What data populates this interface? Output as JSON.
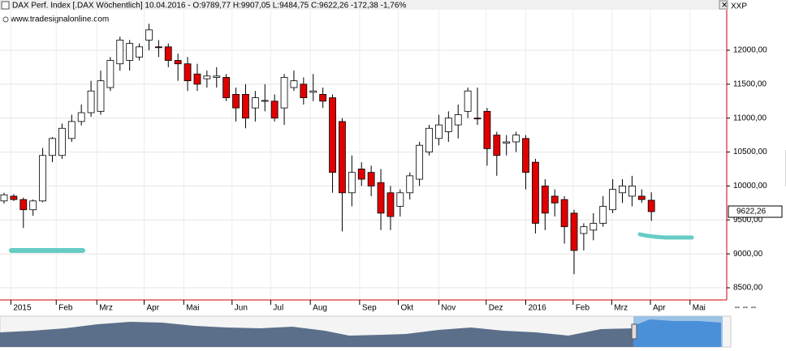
{
  "chart_data": {
    "type": "candlestick",
    "title": "DAX Perf. Index [.DAX  Wöchentlich] 10.04.2016 - O:9789,77 H:9907,05 L:9484,75 C:9622,26 -172,38 -1,76%",
    "watermark": "www.tradesignalonline.com",
    "axis_name": "XXP",
    "last_price_label": "9622,26",
    "x": [
      0,
      1,
      2,
      3,
      4,
      5,
      6,
      7,
      8,
      9,
      10,
      11,
      12,
      13,
      14,
      15,
      16,
      17,
      18,
      19,
      20,
      21,
      22,
      23,
      24,
      25,
      26,
      27,
      28,
      29,
      30,
      31,
      32,
      33,
      34,
      35,
      36,
      37,
      38,
      39,
      40,
      41,
      42,
      43,
      44,
      45,
      46,
      47,
      48,
      49,
      50,
      51,
      52,
      53,
      54,
      55,
      56,
      57,
      58,
      59,
      60,
      61,
      62,
      63,
      64,
      65,
      66,
      67
    ],
    "open": [
      9780,
      9850,
      9800,
      9650,
      9780,
      10450,
      10450,
      10700,
      10950,
      11080,
      11100,
      11450,
      11800,
      11850,
      11900,
      12150,
      12050,
      12050,
      11850,
      11800,
      11650,
      11580,
      11600,
      11600,
      11350,
      11350,
      11150,
      11250,
      11250,
      11150,
      11450,
      11500,
      11380,
      11350,
      11300,
      10950,
      9900,
      10250,
      10200,
      10050,
      9900,
      9700,
      9900,
      10100,
      10500,
      10700,
      10800,
      10900,
      11100,
      11000,
      11100,
      10750,
      10630,
      10650,
      10700,
      10350,
      10000,
      9850,
      9800,
      9600,
      9300,
      9350,
      9450,
      9650,
      9900,
      9850,
      9850,
      9789.77
    ],
    "high": [
      9900,
      9880,
      9830,
      9800,
      10560,
      10720,
      10920,
      11050,
      11200,
      11550,
      11700,
      11900,
      12200,
      12150,
      12100,
      12390,
      12150,
      12100,
      11950,
      11900,
      11800,
      11700,
      11750,
      11650,
      11450,
      11500,
      11400,
      11500,
      11350,
      11650,
      11700,
      11600,
      11650,
      11450,
      11350,
      11000,
      10450,
      10350,
      10300,
      10250,
      10000,
      9950,
      10200,
      10650,
      10900,
      11050,
      11100,
      11200,
      11450,
      11450,
      11150,
      10800,
      10750,
      10800,
      10750,
      10400,
      10100,
      9950,
      9850,
      9650,
      9450,
      9600,
      9850,
      10100,
      10100,
      10150,
      9950,
      9907.05
    ],
    "low": [
      9740,
      9780,
      9380,
      9560,
      9760,
      10350,
      10400,
      10650,
      10890,
      11020,
      11050,
      11400,
      11700,
      11700,
      11850,
      12000,
      11900,
      11750,
      11550,
      11400,
      11400,
      11450,
      11450,
      11250,
      10950,
      10850,
      10950,
      11100,
      10950,
      10900,
      11400,
      11200,
      11250,
      11150,
      9900,
      9330,
      9700,
      10000,
      9850,
      9350,
      9350,
      9550,
      9800,
      10000,
      10450,
      10600,
      10650,
      10700,
      11000,
      10900,
      10300,
      10150,
      10450,
      10500,
      9950,
      9300,
      9350,
      9550,
      9150,
      8700,
      9050,
      9200,
      9400,
      9600,
      9750,
      9700,
      9750,
      9484.75
    ],
    "close": [
      9870,
      9800,
      9650,
      9780,
      10450,
      10700,
      10850,
      10950,
      11080,
      11400,
      11550,
      11850,
      12150,
      12100,
      12050,
      12300,
      12040,
      11850,
      11800,
      11550,
      11500,
      11620,
      11620,
      11300,
      11150,
      11000,
      11300,
      11260,
      11000,
      11600,
      11550,
      11300,
      11400,
      11250,
      10200,
      9900,
      10200,
      10100,
      10000,
      9600,
      9550,
      9900,
      10150,
      10600,
      10850,
      10900,
      11000,
      11050,
      11400,
      10990,
      10550,
      10450,
      10650,
      10750,
      10200,
      9450,
      9600,
      9750,
      9400,
      9050,
      9400,
      9450,
      9700,
      9950,
      10000,
      10000,
      9800,
      9622.26
    ],
    "up_color": "#ffffff",
    "down_color": "#e00000",
    "xlim": [
      -0.42,
      74.8
    ],
    "xticks": [
      {
        "value": 0.7,
        "label": "2015"
      },
      {
        "value": 5.4,
        "label": "Feb"
      },
      {
        "value": 9.6,
        "label": "Mrz"
      },
      {
        "value": 14.5,
        "label": "Apr"
      },
      {
        "value": 18.6,
        "label": "Mai"
      },
      {
        "value": 23.6,
        "label": "Jun"
      },
      {
        "value": 27.6,
        "label": "Jul"
      },
      {
        "value": 31.7,
        "label": "Aug"
      },
      {
        "value": 36.8,
        "label": "Sep"
      },
      {
        "value": 40.8,
        "label": "Okt"
      },
      {
        "value": 45,
        "label": "Nov"
      },
      {
        "value": 49.9,
        "label": "Dez"
      },
      {
        "value": 54,
        "label": "2016"
      },
      {
        "value": 58.9,
        "label": "Feb"
      },
      {
        "value": 62.9,
        "label": "Mrz"
      },
      {
        "value": 66.9,
        "label": "Apr"
      },
      {
        "value": 71,
        "label": "Mai"
      }
    ],
    "ylim": [
      8321,
      12597
    ],
    "yticks": [
      {
        "value": 8500,
        "label": "8500,00"
      },
      {
        "value": 9000,
        "label": "9000,00"
      },
      {
        "value": 9500,
        "label": "9500,00"
      },
      {
        "value": 10000,
        "label": "10000,00"
      },
      {
        "value": 10500,
        "label": "10500,00"
      },
      {
        "value": 11000,
        "label": "11000,00"
      },
      {
        "value": 11500,
        "label": "11500,00"
      },
      {
        "value": 12000,
        "label": "12000,00"
      }
    ],
    "grid": true
  }
}
